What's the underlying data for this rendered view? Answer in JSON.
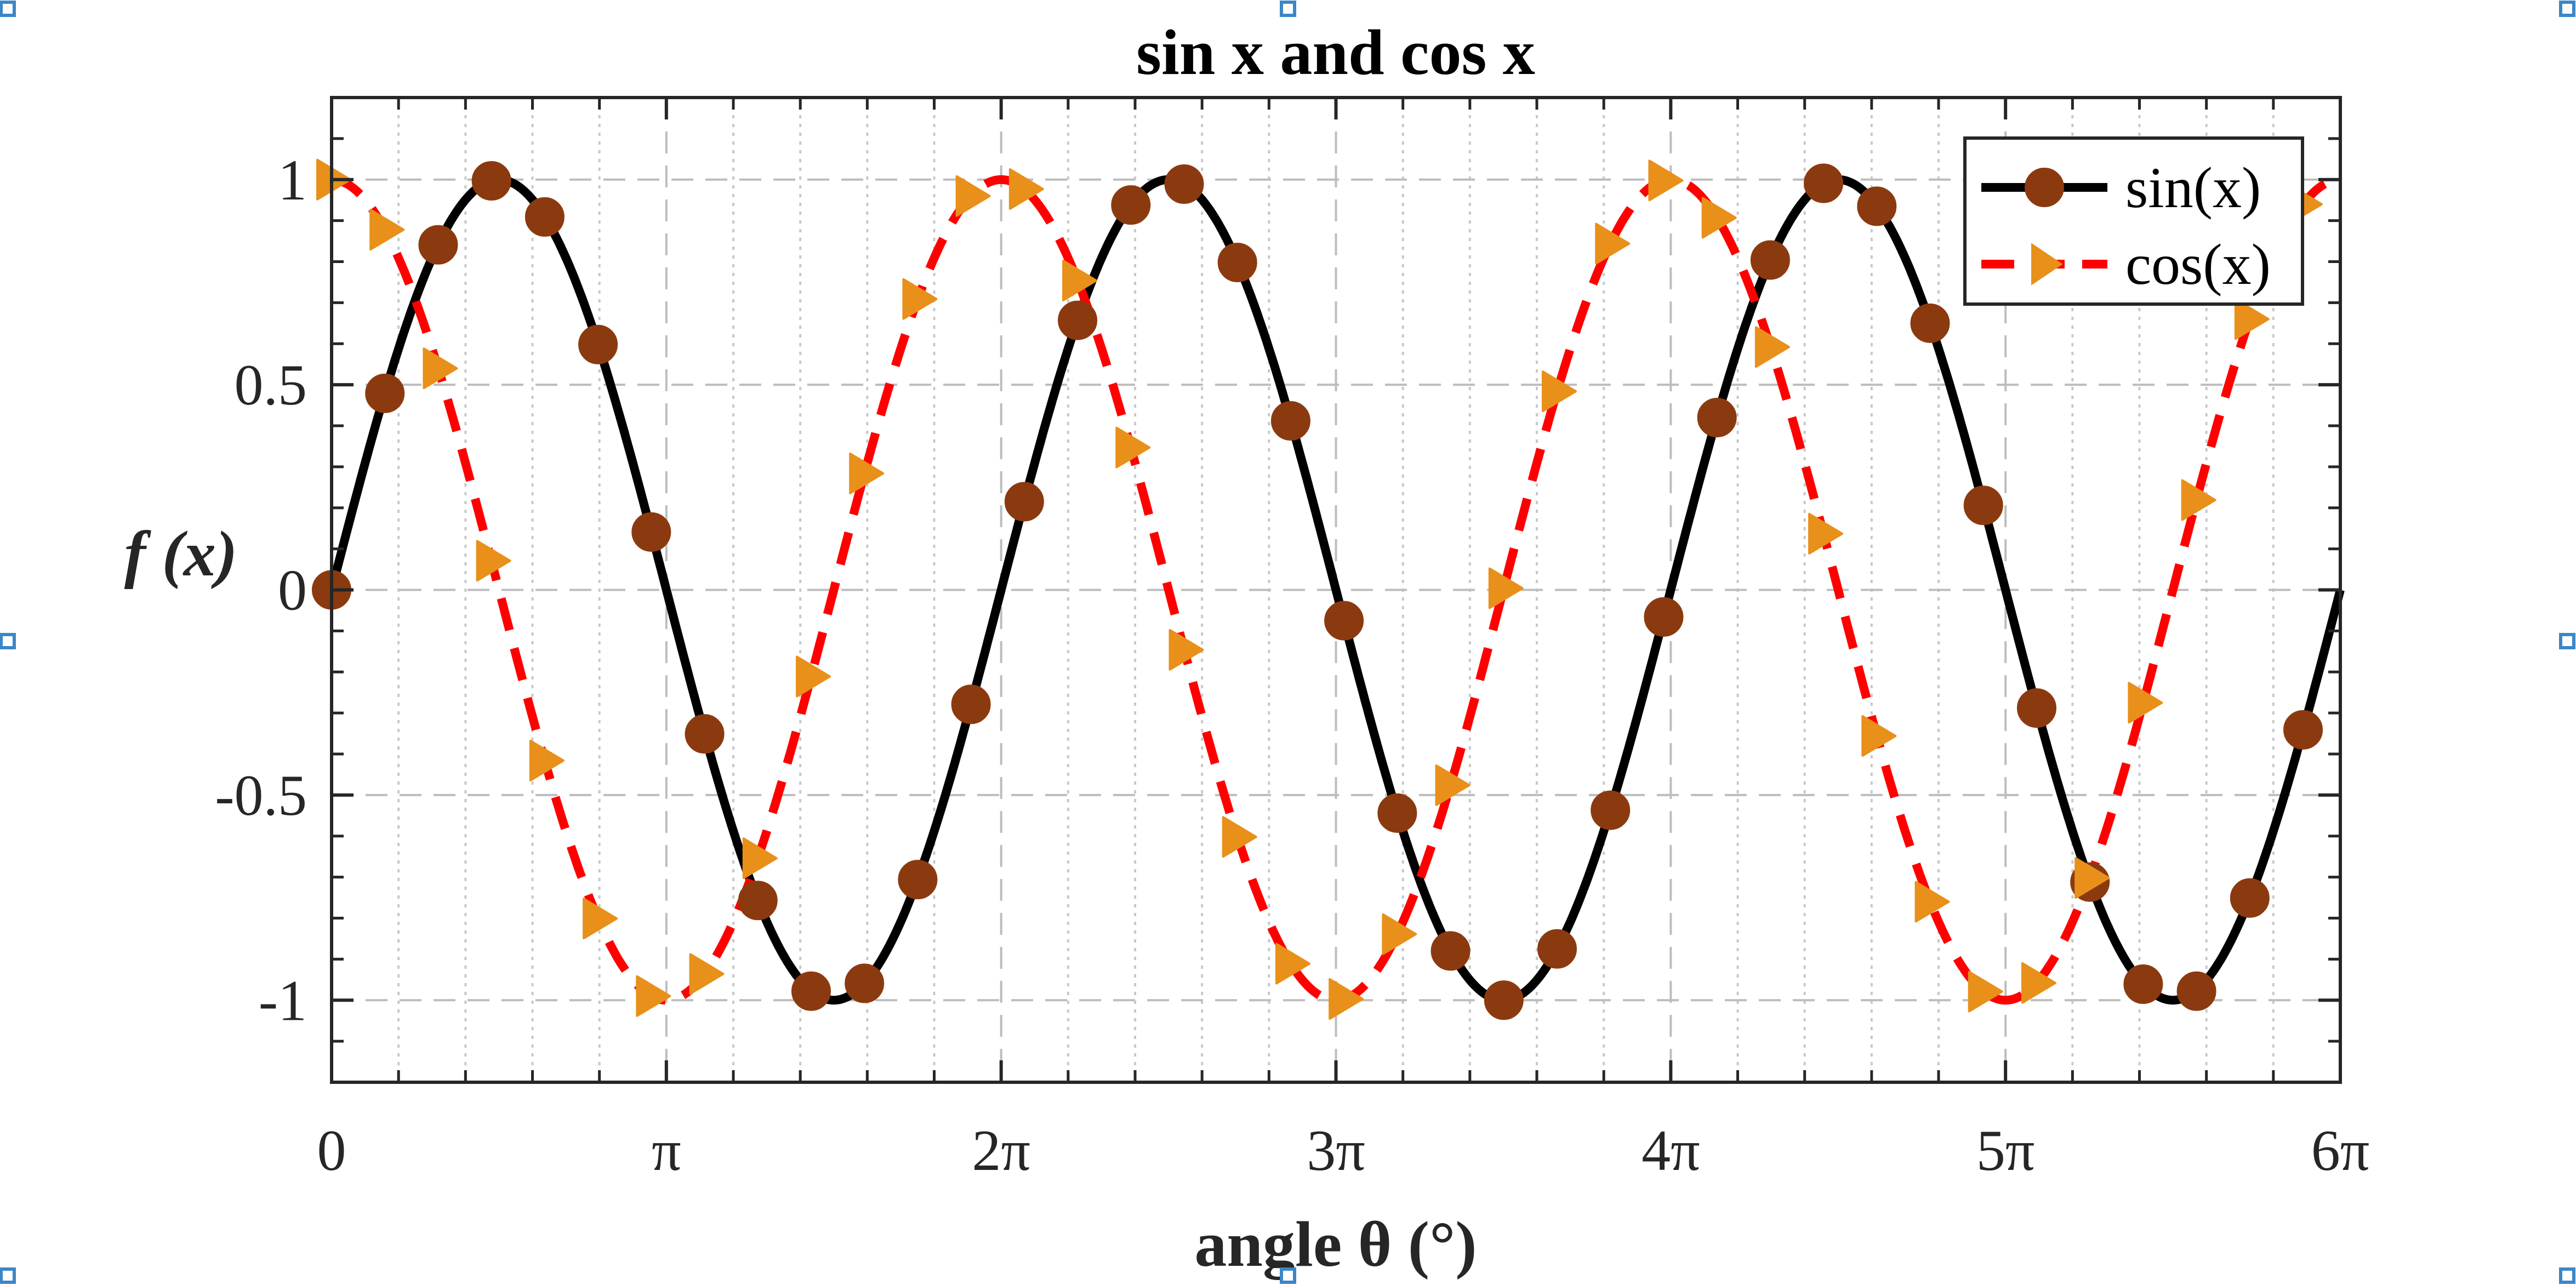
{
  "chart_data": {
    "type": "line",
    "title": "sin x and cos x",
    "xlabel": "angle θ (°)",
    "ylabel": "f (x)",
    "x_range": [
      0,
      18.84956
    ],
    "ylim": [
      -1.2,
      1.2
    ],
    "x_ticks": [
      {
        "value": 0,
        "label": "0"
      },
      {
        "value": 3.14159,
        "label": "π"
      },
      {
        "value": 6.28319,
        "label": "2π"
      },
      {
        "value": 9.42478,
        "label": "3π"
      },
      {
        "value": 12.56637,
        "label": "4π"
      },
      {
        "value": 15.70796,
        "label": "5π"
      },
      {
        "value": 18.84956,
        "label": "6π"
      }
    ],
    "y_ticks": [
      {
        "value": 1,
        "label": "1"
      },
      {
        "value": 0.5,
        "label": "0.5"
      },
      {
        "value": 0,
        "label": "0"
      },
      {
        "value": -0.5,
        "label": "-0.5"
      },
      {
        "value": -1,
        "label": "-1"
      }
    ],
    "grid": true,
    "legend_position": "top-right",
    "series": [
      {
        "name": "sin(x)",
        "function": "sin",
        "line_color": "#000000",
        "line_style": "solid",
        "marker": "circle",
        "marker_color": "#8b3a0f",
        "marker_x": [
          0,
          0.5,
          1.0,
          1.5,
          2.0,
          2.5,
          3.0,
          3.5,
          4.0,
          4.5,
          5.0,
          5.5,
          6.0,
          6.5,
          7.0,
          7.5,
          8.0,
          8.5,
          9.0,
          9.5,
          10.0,
          10.5,
          11.0,
          11.5,
          12.0,
          12.5,
          13.0,
          13.5,
          14.0,
          14.5,
          15.0,
          15.5,
          16.0,
          16.5,
          17.0,
          17.5,
          18.0,
          18.5
        ],
        "marker_y": [
          0.0,
          0.479,
          0.841,
          0.997,
          0.909,
          0.598,
          0.141,
          -0.351,
          -0.757,
          -0.978,
          -0.959,
          -0.706,
          -0.279,
          0.215,
          0.657,
          0.938,
          0.989,
          0.798,
          0.412,
          -0.075,
          -0.544,
          -0.88,
          -1.0,
          -0.875,
          -0.537,
          -0.066,
          0.42,
          0.804,
          0.991,
          0.935,
          0.65,
          0.206,
          -0.288,
          -0.712,
          -0.961,
          -0.978,
          -0.751,
          -0.341
        ]
      },
      {
        "name": "cos(x)",
        "function": "cos",
        "line_color": "#ff0000",
        "line_style": "dashed",
        "marker": "triangle-right",
        "marker_color": "#e8901a",
        "marker_x": [
          0,
          0.5,
          1.0,
          1.5,
          2.0,
          2.5,
          3.0,
          3.5,
          4.0,
          4.5,
          5.0,
          5.5,
          6.0,
          6.5,
          7.0,
          7.5,
          8.0,
          8.5,
          9.0,
          9.5,
          10.0,
          10.5,
          11.0,
          11.5,
          12.0,
          12.5,
          13.0,
          13.5,
          14.0,
          14.5,
          15.0,
          15.5,
          16.0,
          16.5,
          17.0,
          17.5,
          18.0,
          18.5
        ],
        "marker_y": [
          1.0,
          0.878,
          0.54,
          0.071,
          -0.416,
          -0.801,
          -0.99,
          -0.936,
          -0.654,
          -0.211,
          0.284,
          0.709,
          0.96,
          0.977,
          0.754,
          0.347,
          -0.146,
          -0.602,
          -0.911,
          -0.997,
          -0.839,
          -0.476,
          0.004,
          0.484,
          0.844,
          0.998,
          0.907,
          0.592,
          0.137,
          -0.356,
          -0.76,
          -0.979,
          -0.958,
          -0.702,
          -0.275,
          0.219,
          0.66,
          0.94
        ]
      }
    ]
  }
}
